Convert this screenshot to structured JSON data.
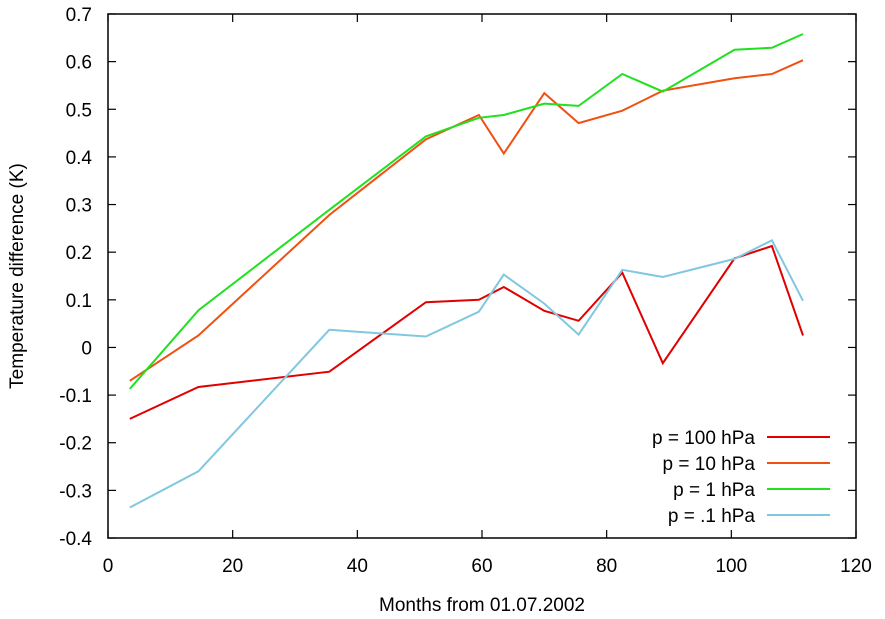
{
  "chart_data": {
    "type": "line",
    "title": "",
    "xlabel": "Months from 01.07.2002",
    "ylabel": "Temperature difference (K)",
    "xlim": [
      0,
      120
    ],
    "ylim": [
      -0.4,
      0.7
    ],
    "xticks": [
      0,
      20,
      40,
      60,
      80,
      100,
      120
    ],
    "yticks": [
      -0.4,
      -0.3,
      -0.2,
      -0.1,
      0,
      0.1,
      0.2,
      0.3,
      0.4,
      0.5,
      0.6,
      0.7
    ],
    "grid": false,
    "legend_position": "bottom-right",
    "series": [
      {
        "name": "p = 100 hPa",
        "color": "#e00000",
        "x": [
          3.5,
          14.5,
          35.5,
          51,
          59.5,
          63.5,
          70,
          75.5,
          82.5,
          89,
          100.5,
          106.5,
          111.5
        ],
        "y": [
          -0.15,
          -0.083,
          -0.051,
          0.095,
          0.1,
          0.127,
          0.077,
          0.056,
          0.157,
          -0.033,
          0.187,
          0.213,
          0.025
        ]
      },
      {
        "name": "p = 10 hPa",
        "color": "#f05010",
        "x": [
          3.5,
          14.5,
          35.5,
          51,
          59.5,
          63.5,
          70,
          75.5,
          82.5,
          89,
          100.5,
          106.5,
          111.5
        ],
        "y": [
          -0.07,
          0.025,
          0.278,
          0.437,
          0.488,
          0.407,
          0.534,
          0.471,
          0.497,
          0.539,
          0.565,
          0.574,
          0.603
        ]
      },
      {
        "name": "p = 1 hPa",
        "color": "#20e020",
        "x": [
          3.5,
          14.5,
          35.5,
          51,
          59.5,
          63.5,
          70,
          75.5,
          82.5,
          89,
          100.5,
          106.5,
          111.5
        ],
        "y": [
          -0.087,
          0.078,
          0.289,
          0.443,
          0.482,
          0.488,
          0.512,
          0.507,
          0.574,
          0.537,
          0.625,
          0.629,
          0.658
        ]
      },
      {
        "name": "p = .1 hPa",
        "color": "#80c8e0",
        "x": [
          3.5,
          14.5,
          35.5,
          51,
          59.5,
          63.5,
          70,
          75.5,
          82.5,
          89,
          100.5,
          106.5,
          111.5
        ],
        "y": [
          -0.336,
          -0.26,
          0.037,
          0.023,
          0.075,
          0.153,
          0.092,
          0.027,
          0.163,
          0.148,
          0.186,
          0.225,
          0.098
        ]
      }
    ]
  }
}
